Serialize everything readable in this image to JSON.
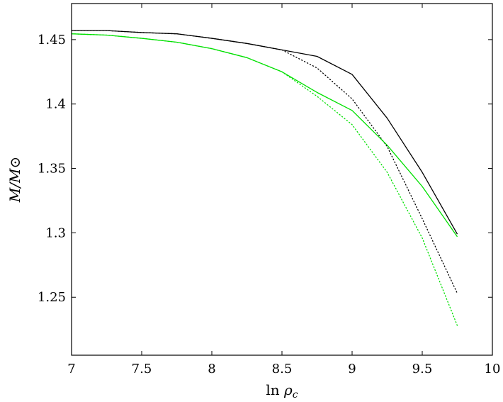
{
  "chart_data": {
    "type": "line",
    "title": "",
    "xlabel": "ln ρc",
    "ylabel": "M/M⊙",
    "xlim": [
      7,
      10
    ],
    "ylim": [
      1.205,
      1.478
    ],
    "xticks": [
      7,
      7.5,
      8,
      8.5,
      9,
      9.5,
      10
    ],
    "xtick_labels": [
      "7",
      "7.5",
      "8",
      "8.5",
      "9",
      "9.5",
      "10"
    ],
    "yticks": [
      1.25,
      1.3,
      1.35,
      1.4,
      1.45
    ],
    "ytick_labels": [
      "1.25",
      "1.3",
      "1.35",
      "1.4",
      "1.45"
    ],
    "grid": false,
    "legend": "none",
    "series": [
      {
        "color": "#000000",
        "style": "solid",
        "x": [
          7,
          7.25,
          7.5,
          7.75,
          8,
          8.25,
          8.5,
          8.75,
          9,
          9.25,
          9.5,
          9.75
        ],
        "y": [
          1.457,
          1.457,
          1.4555,
          1.4545,
          1.451,
          1.447,
          1.442,
          1.437,
          1.423,
          1.389,
          1.347,
          1.299
        ]
      },
      {
        "color": "#000000",
        "style": "dotted",
        "x": [
          7,
          7.25,
          7.5,
          7.75,
          8,
          8.25,
          8.5,
          8.75,
          9,
          9.25,
          9.5,
          9.75
        ],
        "y": [
          1.457,
          1.457,
          1.4555,
          1.4545,
          1.451,
          1.447,
          1.442,
          1.428,
          1.404,
          1.367,
          1.311,
          1.253
        ]
      },
      {
        "color": "#00e000",
        "style": "solid",
        "x": [
          7,
          7.25,
          7.5,
          7.75,
          8,
          8.25,
          8.5,
          8.75,
          9,
          9.25,
          9.5,
          9.75
        ],
        "y": [
          1.4545,
          1.4535,
          1.451,
          1.448,
          1.443,
          1.436,
          1.425,
          1.409,
          1.395,
          1.368,
          1.336,
          1.297
        ]
      },
      {
        "color": "#00e000",
        "style": "dotted",
        "x": [
          7,
          7.25,
          7.5,
          7.75,
          8,
          8.25,
          8.5,
          8.75,
          9,
          9.25,
          9.5,
          9.75
        ],
        "y": [
          1.4545,
          1.4535,
          1.451,
          1.448,
          1.443,
          1.436,
          1.425,
          1.406,
          1.384,
          1.347,
          1.296,
          1.228
        ]
      }
    ]
  }
}
